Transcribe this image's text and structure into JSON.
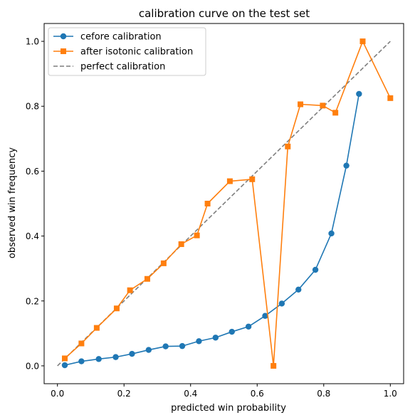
{
  "chart_data": {
    "type": "line",
    "title": "calibration curve on the test set",
    "xlabel": "predicted win probability",
    "ylabel": "observed win frequency",
    "xlim": [
      -0.04,
      1.04
    ],
    "ylim": [
      -0.055,
      1.055
    ],
    "xticks": [
      0.0,
      0.2,
      0.4,
      0.6,
      0.8,
      1.0
    ],
    "xtick_labels": [
      "0.0",
      "0.2",
      "0.4",
      "0.6",
      "0.8",
      "1.0"
    ],
    "yticks": [
      0.0,
      0.2,
      0.4,
      0.6,
      0.8,
      1.0
    ],
    "ytick_labels": [
      "0.0",
      "0.2",
      "0.4",
      "0.6",
      "0.8",
      "1.0"
    ],
    "grid": false,
    "legend_position": "upper-left",
    "series": [
      {
        "name": "cefore calibration",
        "color": "#1f77b4",
        "marker": "circle",
        "linestyle": "solid",
        "x": [
          0.022,
          0.072,
          0.124,
          0.175,
          0.224,
          0.274,
          0.325,
          0.375,
          0.425,
          0.475,
          0.524,
          0.574,
          0.624,
          0.674,
          0.724,
          0.775,
          0.823,
          0.868,
          0.906
        ],
        "y": [
          0.002,
          0.014,
          0.021,
          0.027,
          0.037,
          0.049,
          0.06,
          0.061,
          0.076,
          0.087,
          0.105,
          0.121,
          0.154,
          0.192,
          0.235,
          0.296,
          0.408,
          0.617,
          0.838
        ]
      },
      {
        "name": "after isotonic calibration",
        "color": "#ff7f0e",
        "marker": "square",
        "linestyle": "solid",
        "x": [
          0.022,
          0.072,
          0.118,
          0.178,
          0.218,
          0.27,
          0.319,
          0.372,
          0.419,
          0.451,
          0.518,
          0.585,
          0.649,
          0.692,
          0.73,
          0.797,
          0.835,
          0.917,
          1.0
        ],
        "y": [
          0.023,
          0.069,
          0.117,
          0.177,
          0.233,
          0.268,
          0.316,
          0.375,
          0.402,
          0.5,
          0.569,
          0.575,
          0.0,
          0.676,
          0.806,
          0.802,
          0.78,
          1.0,
          0.825
        ]
      },
      {
        "name": "perfect calibration",
        "color": "#7f7f7f",
        "marker": "none",
        "linestyle": "dashed",
        "x": [
          0.0,
          1.0
        ],
        "y": [
          0.0,
          1.0
        ]
      }
    ]
  }
}
